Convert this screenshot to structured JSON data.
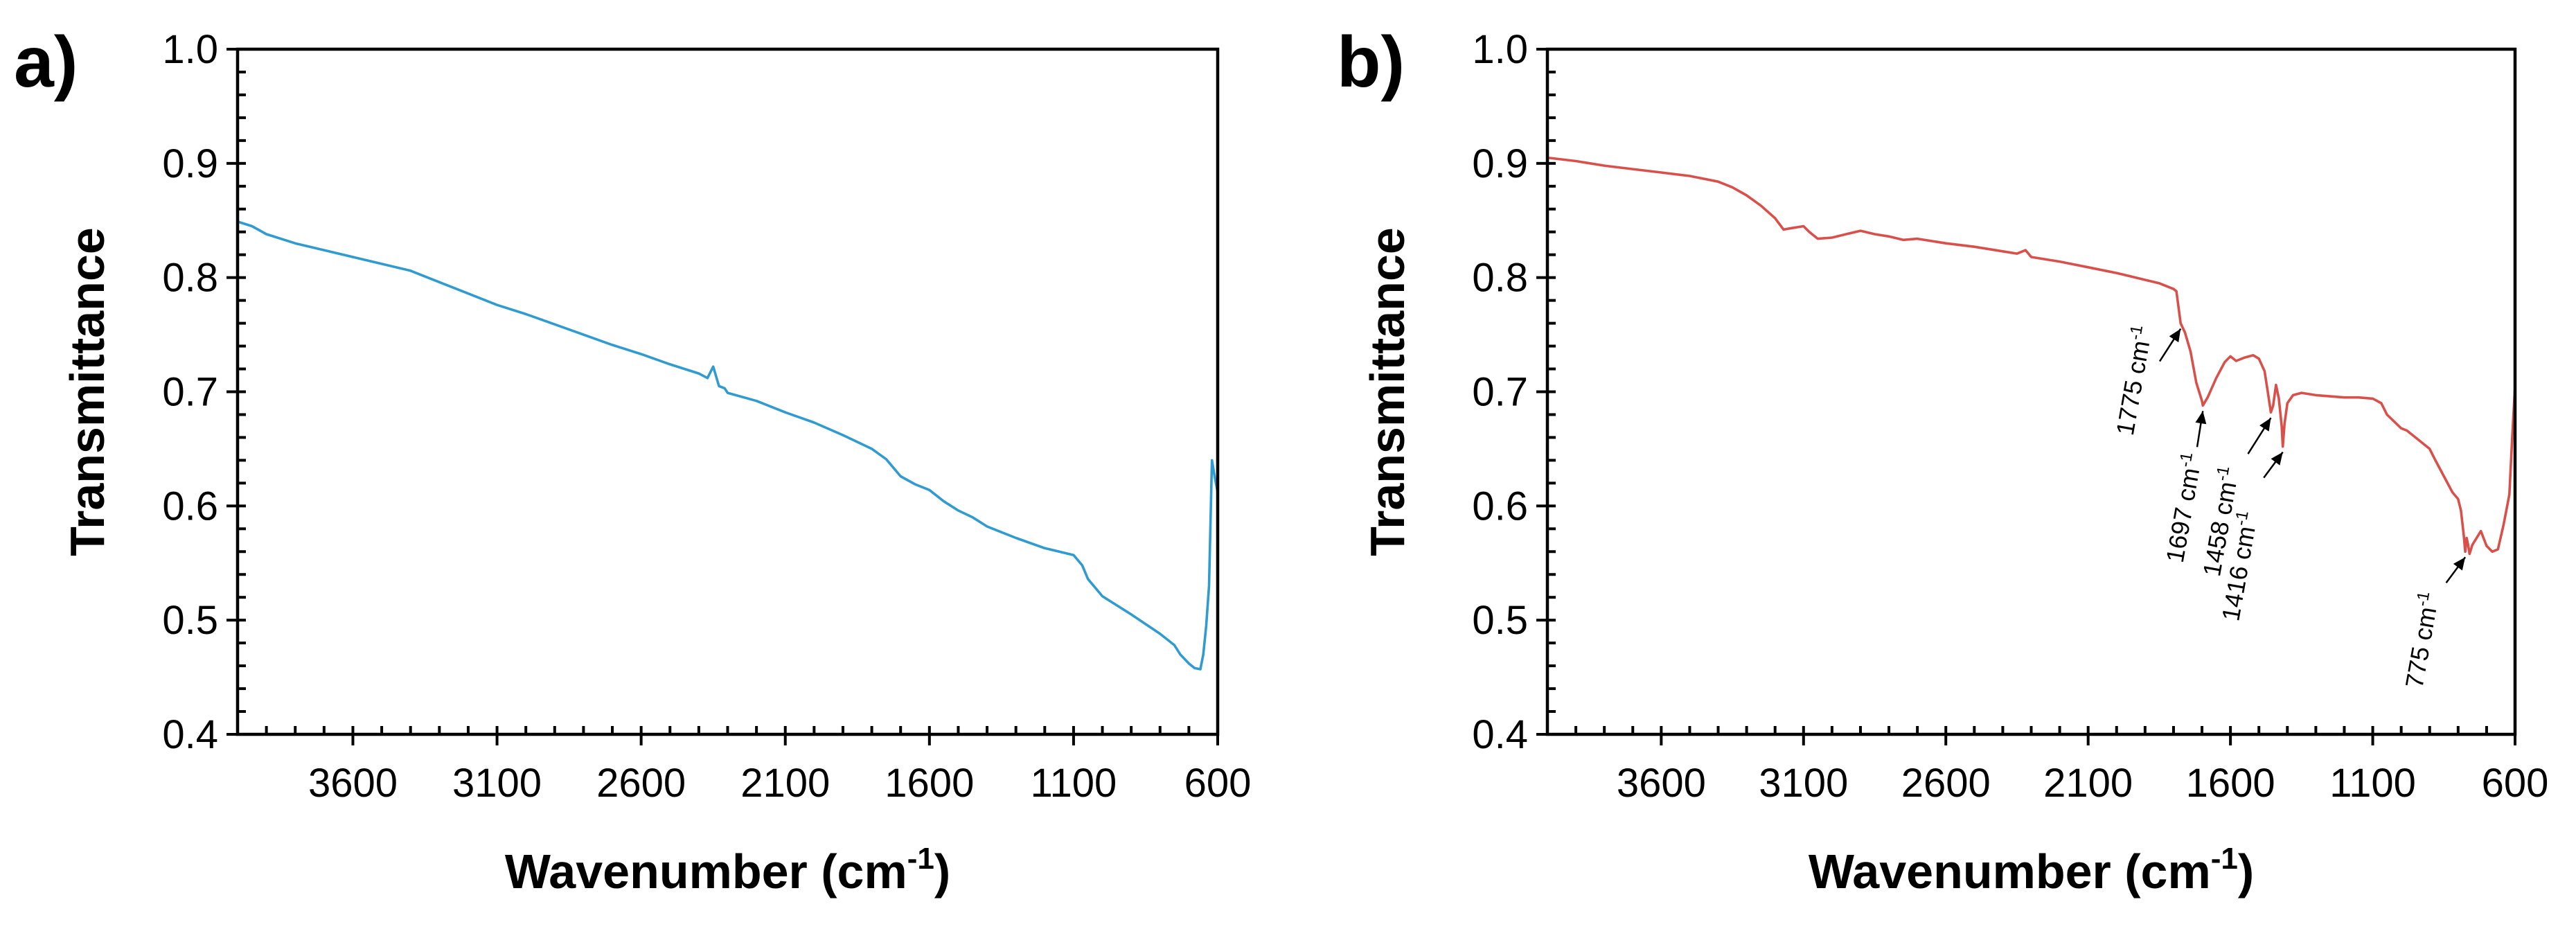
{
  "chart_data": [
    {
      "panel": "a)",
      "type": "line",
      "title": "",
      "xlabel": "Wavenumber (cm",
      "xlabel_sup": "-1",
      "xlabel_close": ")",
      "ylabel": "Transmittance",
      "xlim": [
        4000,
        600
      ],
      "ylim": [
        0.4,
        1.0
      ],
      "x_reversed": true,
      "xtick_labels": [
        "3600",
        "3100",
        "2600",
        "2100",
        "1600",
        "1100",
        "600"
      ],
      "xtick_values": [
        3600,
        3100,
        2600,
        2100,
        1600,
        1100,
        600
      ],
      "ytick_labels": [
        "1.0",
        "0.9",
        "0.8",
        "0.7",
        "0.6",
        "0.5",
        "0.4"
      ],
      "ytick_values": [
        1.0,
        0.9,
        0.8,
        0.7,
        0.6,
        0.5,
        0.4
      ],
      "grid": false,
      "series": [
        {
          "name": "a",
          "color": "#2f9bd0",
          "x": [
            4000,
            3950,
            3900,
            3800,
            3700,
            3600,
            3500,
            3400,
            3300,
            3200,
            3100,
            3000,
            2900,
            2800,
            2700,
            2600,
            2500,
            2400,
            2370,
            2350,
            2330,
            2310,
            2300,
            2200,
            2100,
            2000,
            1900,
            1800,
            1750,
            1700,
            1650,
            1600,
            1550,
            1500,
            1450,
            1400,
            1300,
            1200,
            1100,
            1070,
            1050,
            1000,
            900,
            800,
            750,
            730,
            700,
            680,
            660,
            650,
            640,
            630,
            620,
            610,
            600
          ],
          "y": [
            0.849,
            0.845,
            0.838,
            0.83,
            0.824,
            0.818,
            0.812,
            0.806,
            0.796,
            0.786,
            0.776,
            0.768,
            0.759,
            0.75,
            0.741,
            0.733,
            0.724,
            0.716,
            0.712,
            0.722,
            0.705,
            0.703,
            0.699,
            0.692,
            0.682,
            0.673,
            0.662,
            0.65,
            0.641,
            0.626,
            0.619,
            0.614,
            0.604,
            0.596,
            0.59,
            0.582,
            0.572,
            0.563,
            0.557,
            0.548,
            0.536,
            0.521,
            0.505,
            0.488,
            0.478,
            0.47,
            0.462,
            0.458,
            0.457,
            0.47,
            0.495,
            0.53,
            0.64,
            0.625,
            0.612
          ]
        }
      ],
      "annotations": []
    },
    {
      "panel": "b)",
      "type": "line",
      "title": "",
      "xlabel": "Wavenumber (cm",
      "xlabel_sup": "-1",
      "xlabel_close": ")",
      "ylabel": "Transmittance",
      "xlim": [
        4000,
        600
      ],
      "ylim": [
        0.4,
        1.0
      ],
      "x_reversed": true,
      "xtick_labels": [
        "3600",
        "3100",
        "2600",
        "2100",
        "1600",
        "1100",
        "600"
      ],
      "xtick_values": [
        3600,
        3100,
        2600,
        2100,
        1600,
        1100,
        600
      ],
      "ytick_labels": [
        "1.0",
        "0.9",
        "0.8",
        "0.7",
        "0.6",
        "0.5",
        "0.4"
      ],
      "ytick_values": [
        1.0,
        0.9,
        0.8,
        0.7,
        0.6,
        0.5,
        0.4
      ],
      "grid": false,
      "series": [
        {
          "name": "b",
          "color": "#d9504a",
          "x": [
            4000,
            3900,
            3800,
            3700,
            3600,
            3500,
            3400,
            3350,
            3300,
            3250,
            3200,
            3170,
            3150,
            3100,
            3080,
            3050,
            3000,
            2950,
            2900,
            2850,
            2800,
            2750,
            2700,
            2600,
            2500,
            2400,
            2350,
            2320,
            2300,
            2200,
            2100,
            2000,
            1950,
            1900,
            1850,
            1800,
            1790,
            1775,
            1760,
            1740,
            1720,
            1700,
            1697,
            1680,
            1650,
            1620,
            1600,
            1580,
            1550,
            1520,
            1500,
            1480,
            1470,
            1458,
            1450,
            1440,
            1430,
            1420,
            1416,
            1410,
            1400,
            1380,
            1350,
            1300,
            1250,
            1200,
            1150,
            1100,
            1070,
            1050,
            1000,
            980,
            950,
            900,
            880,
            850,
            820,
            800,
            790,
            780,
            775,
            770,
            765,
            760,
            750,
            740,
            720,
            700,
            680,
            660,
            640,
            620,
            610,
            600
          ],
          "y": [
            0.905,
            0.902,
            0.898,
            0.895,
            0.892,
            0.889,
            0.884,
            0.879,
            0.872,
            0.863,
            0.852,
            0.842,
            0.843,
            0.845,
            0.84,
            0.834,
            0.835,
            0.838,
            0.841,
            0.838,
            0.836,
            0.833,
            0.834,
            0.83,
            0.827,
            0.823,
            0.821,
            0.824,
            0.818,
            0.814,
            0.809,
            0.804,
            0.801,
            0.798,
            0.795,
            0.79,
            0.788,
            0.76,
            0.752,
            0.735,
            0.708,
            0.692,
            0.688,
            0.695,
            0.712,
            0.726,
            0.731,
            0.727,
            0.73,
            0.732,
            0.729,
            0.718,
            0.702,
            0.682,
            0.688,
            0.706,
            0.694,
            0.67,
            0.652,
            0.672,
            0.69,
            0.697,
            0.699,
            0.697,
            0.696,
            0.695,
            0.695,
            0.694,
            0.69,
            0.68,
            0.668,
            0.666,
            0.66,
            0.65,
            0.64,
            0.626,
            0.612,
            0.606,
            0.596,
            0.574,
            0.56,
            0.572,
            0.566,
            0.558,
            0.566,
            0.57,
            0.578,
            0.565,
            0.56,
            0.562,
            0.584,
            0.61,
            0.66,
            0.705
          ]
        }
      ],
      "annotations": [
        {
          "label": "1775 cm",
          "sup": "-1",
          "x": 1775,
          "y": 0.76
        },
        {
          "label": "1697 cm",
          "sup": "-1",
          "x": 1697,
          "y": 0.688
        },
        {
          "label": "1458 cm",
          "sup": "-1",
          "x": 1458,
          "y": 0.682
        },
        {
          "label": "1416 cm",
          "sup": "-1",
          "x": 1416,
          "y": 0.652
        },
        {
          "label": "775 cm",
          "sup": "-1",
          "x": 775,
          "y": 0.56
        }
      ]
    }
  ]
}
